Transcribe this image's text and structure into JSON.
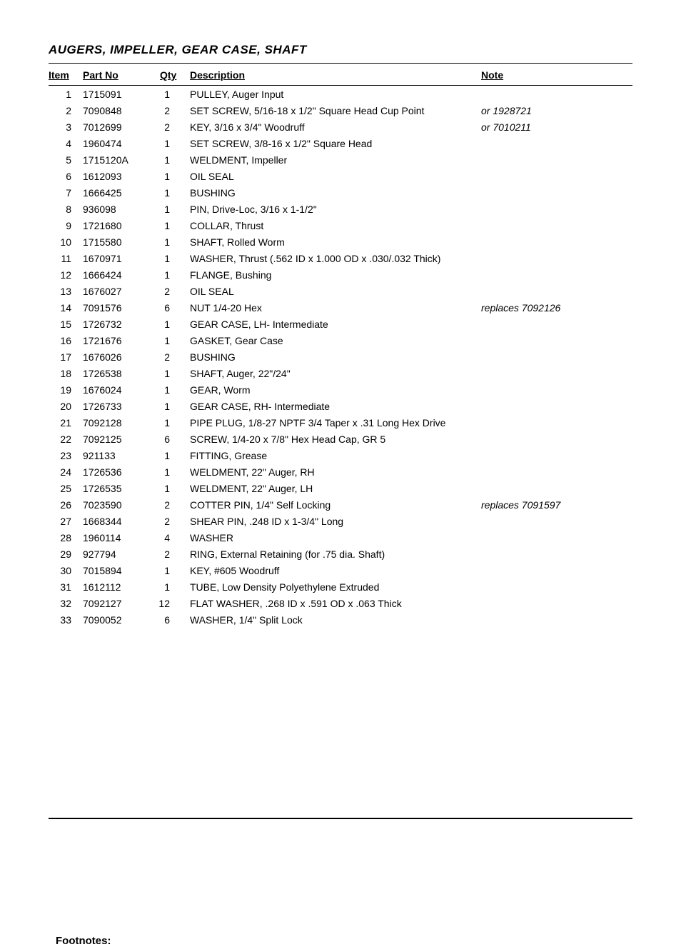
{
  "section_title": "AUGERS, IMPELLER, GEAR CASE, SHAFT",
  "headers": {
    "item": "Item",
    "partno": "Part No",
    "qty": "Qty",
    "description": "Description",
    "note": "Note"
  },
  "rows": [
    {
      "item": "1",
      "partno": "1715091",
      "qty": "1",
      "desc": "PULLEY, Auger Input",
      "note": ""
    },
    {
      "item": "2",
      "partno": "7090848",
      "qty": "2",
      "desc": "SET SCREW, 5/16-18 x 1/2\" Square Head Cup Point",
      "note": "or 1928721"
    },
    {
      "item": "3",
      "partno": "7012699",
      "qty": "2",
      "desc": "KEY, 3/16 x 3/4\" Woodruff",
      "note": "or 7010211"
    },
    {
      "item": "4",
      "partno": "1960474",
      "qty": "1",
      "desc": "SET SCREW, 3/8-16 x 1/2\" Square Head",
      "note": ""
    },
    {
      "item": "5",
      "partno": "1715120A",
      "qty": "1",
      "desc": "WELDMENT, Impeller",
      "note": ""
    },
    {
      "item": "6",
      "partno": "1612093",
      "qty": "1",
      "desc": "OIL SEAL",
      "note": ""
    },
    {
      "item": "7",
      "partno": "1666425",
      "qty": "1",
      "desc": "BUSHING",
      "note": ""
    },
    {
      "item": "8",
      "partno": "936098",
      "qty": "1",
      "desc": "PIN, Drive-Loc, 3/16 x 1-1/2\"",
      "note": ""
    },
    {
      "item": "9",
      "partno": "1721680",
      "qty": "1",
      "desc": "COLLAR, Thrust",
      "note": ""
    },
    {
      "item": "10",
      "partno": "1715580",
      "qty": "1",
      "desc": "SHAFT, Rolled Worm",
      "note": ""
    },
    {
      "item": "11",
      "partno": "1670971",
      "qty": "1",
      "desc": "WASHER, Thrust (.562 ID x 1.000 OD x .030/.032 Thick)",
      "note": ""
    },
    {
      "item": "12",
      "partno": "1666424",
      "qty": "1",
      "desc": "FLANGE, Bushing",
      "note": ""
    },
    {
      "item": "13",
      "partno": "1676027",
      "qty": "2",
      "desc": "OIL SEAL",
      "note": ""
    },
    {
      "item": "14",
      "partno": "7091576",
      "qty": "6",
      "desc": "NUT 1/4-20 Hex",
      "note": "replaces 7092126"
    },
    {
      "item": "15",
      "partno": "1726732",
      "qty": "1",
      "desc": "GEAR CASE, LH- Intermediate",
      "note": ""
    },
    {
      "item": "16",
      "partno": "1721676",
      "qty": "1",
      "desc": "GASKET, Gear Case",
      "note": ""
    },
    {
      "item": "17",
      "partno": "1676026",
      "qty": "2",
      "desc": "BUSHING",
      "note": ""
    },
    {
      "item": "18",
      "partno": "1726538",
      "qty": "1",
      "desc": "SHAFT, Auger, 22\"/24\"",
      "note": ""
    },
    {
      "item": "19",
      "partno": "1676024",
      "qty": "1",
      "desc": "GEAR, Worm",
      "note": ""
    },
    {
      "item": "20",
      "partno": "1726733",
      "qty": "1",
      "desc": "GEAR CASE, RH- Intermediate",
      "note": ""
    },
    {
      "item": "21",
      "partno": "7092128",
      "qty": "1",
      "desc": "PIPE PLUG, 1/8-27 NPTF 3/4 Taper x .31 Long Hex Drive",
      "note": ""
    },
    {
      "item": "22",
      "partno": "7092125",
      "qty": "6",
      "desc": "SCREW, 1/4-20 x 7/8\" Hex Head Cap, GR 5",
      "note": ""
    },
    {
      "item": "23",
      "partno": "921133",
      "qty": "1",
      "desc": "FITTING, Grease",
      "note": ""
    },
    {
      "item": "24",
      "partno": "1726536",
      "qty": "1",
      "desc": "WELDMENT, 22\" Auger, RH",
      "note": ""
    },
    {
      "item": "25",
      "partno": "1726535",
      "qty": "1",
      "desc": "WELDMENT, 22\" Auger, LH",
      "note": ""
    },
    {
      "item": "26",
      "partno": "7023590",
      "qty": "2",
      "desc": "COTTER PIN, 1/4\" Self Locking",
      "note": "replaces 7091597"
    },
    {
      "item": "27",
      "partno": "1668344",
      "qty": "2",
      "desc": "SHEAR PIN, .248 ID x 1-3/4\" Long",
      "note": ""
    },
    {
      "item": "28",
      "partno": "1960114",
      "qty": "4",
      "desc": "WASHER",
      "note": ""
    },
    {
      "item": "29",
      "partno": "927794",
      "qty": "2",
      "desc": "RING, External Retaining (for .75 dia. Shaft)",
      "note": ""
    },
    {
      "item": "30",
      "partno": "7015894",
      "qty": "1",
      "desc": "KEY, #605 Woodruff",
      "note": ""
    },
    {
      "item": "31",
      "partno": "1612112",
      "qty": "1",
      "desc": "TUBE, Low Density Polyethylene Extruded",
      "note": ""
    },
    {
      "item": "32",
      "partno": "7092127",
      "qty": "12",
      "desc": "FLAT WASHER, .268 ID x .591 OD x .063 Thick",
      "note": ""
    },
    {
      "item": "33",
      "partno": "7090052",
      "qty": "6",
      "desc": "WASHER, 1/4\" Split Lock",
      "note": ""
    }
  ],
  "footnotes_label": "Footnotes:"
}
